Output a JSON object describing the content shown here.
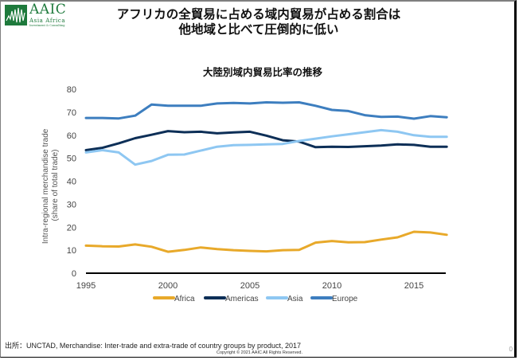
{
  "logo": {
    "name": "AAIC",
    "subtitle": "Asia Africa",
    "tagline": "Investment & Consulting"
  },
  "header": {
    "title_line1": "アフリカの全貿易に占める域内貿易が占める割合は",
    "title_line2": "他地域と比べて圧倒的に低い"
  },
  "footer": {
    "source": "出所：UNCTAD, Merchandise: Inter-trade and extra-trade of country groups by product, 2017",
    "copyright": "Copyright © 2021 AAIC All Rights Reserved.",
    "page_number": "0"
  },
  "chart_data": {
    "type": "line",
    "title": "大陸別域内貿易比率の推移",
    "xlabel": "",
    "ylabel_line1": "Intra-regional merchandise trade",
    "ylabel_line2": "(share of total trade)",
    "ylim": [
      0,
      80
    ],
    "yticks": [
      0,
      10,
      20,
      30,
      40,
      50,
      60,
      70,
      80
    ],
    "xlim": [
      1995,
      2017
    ],
    "xticks": [
      1995,
      2000,
      2005,
      2010,
      2015
    ],
    "grid": false,
    "legend_position": "bottom",
    "x": [
      1995,
      1996,
      1997,
      1998,
      1999,
      2000,
      2001,
      2002,
      2003,
      2004,
      2005,
      2006,
      2007,
      2008,
      2009,
      2010,
      2011,
      2012,
      2013,
      2014,
      2015,
      2016,
      2017
    ],
    "series": [
      {
        "name": "Africa",
        "color": "#e8a92a",
        "values": [
          12,
          11.7,
          11.6,
          12.5,
          11.5,
          9.3,
          10.1,
          11.2,
          10.5,
          10,
          9.7,
          9.5,
          10,
          10.1,
          13.3,
          14,
          13.4,
          13.5,
          14.6,
          15.6,
          18,
          17.7,
          16.7
        ]
      },
      {
        "name": "Americas",
        "color": "#0d2f57",
        "values": [
          53.5,
          54.5,
          56.5,
          58.7,
          60.2,
          61.8,
          61.3,
          61.5,
          60.8,
          61.2,
          61.5,
          59.8,
          57.8,
          57.2,
          54.8,
          55,
          54.9,
          55.2,
          55.5,
          56,
          55.8,
          55,
          55
        ]
      },
      {
        "name": "Asia",
        "color": "#8ec7f2",
        "values": [
          52.5,
          53.5,
          52.5,
          47.2,
          48.8,
          51.5,
          51.6,
          53.3,
          55,
          55.7,
          55.8,
          56,
          56.2,
          57.5,
          58.5,
          59.5,
          60.4,
          61.3,
          62.2,
          61.5,
          60,
          59.3,
          59.3
        ]
      },
      {
        "name": "Europe",
        "color": "#3d7ebf",
        "values": [
          67.5,
          67.5,
          67.3,
          68.5,
          73.3,
          72.8,
          72.8,
          72.8,
          73.8,
          74,
          73.8,
          74.3,
          74.1,
          74.3,
          72.8,
          71,
          70.5,
          68.7,
          68,
          68.1,
          67.2,
          68.3,
          67.8
        ]
      }
    ],
    "axis_color": "#000000",
    "tick_label_color": "#444444"
  }
}
